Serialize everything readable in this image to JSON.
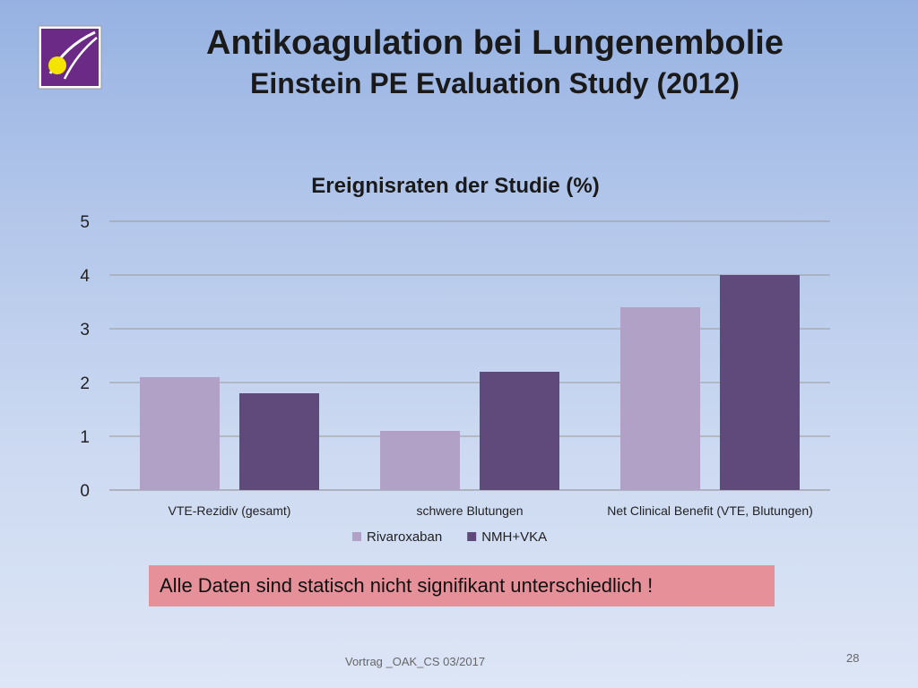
{
  "slide": {
    "title": "Antikoagulation bei Lungenembolie",
    "subtitle": "Einstein PE Evaluation Study (2012)",
    "note": "Alle Daten sind statisch nicht signifikant unterschiedlich !",
    "footer": "Vortrag _OAK_CS 03/2017",
    "page_number": "28"
  },
  "logo": {
    "icon": "comet-logo-icon",
    "background": "#6a2a86",
    "dot_color": "#f5e400"
  },
  "chart_data": {
    "type": "bar",
    "title": "Ereignisraten der Studie (%)",
    "categories": [
      "VTE-Rezidiv (gesamt)",
      "schwere Blutungen",
      "Net Clinical Benefit (VTE, Blutungen)"
    ],
    "series": [
      {
        "name": "Rivaroxaban",
        "values": [
          2.1,
          1.1,
          3.4
        ],
        "color": "#b2a1c7"
      },
      {
        "name": "NMH+VKA",
        "values": [
          1.8,
          2.2,
          4.0
        ],
        "color": "#604a7b"
      }
    ],
    "ylim": [
      0,
      5
    ],
    "yticks": [
      0,
      1,
      2,
      3,
      4,
      5
    ],
    "grid": true,
    "legend": "bottom"
  }
}
